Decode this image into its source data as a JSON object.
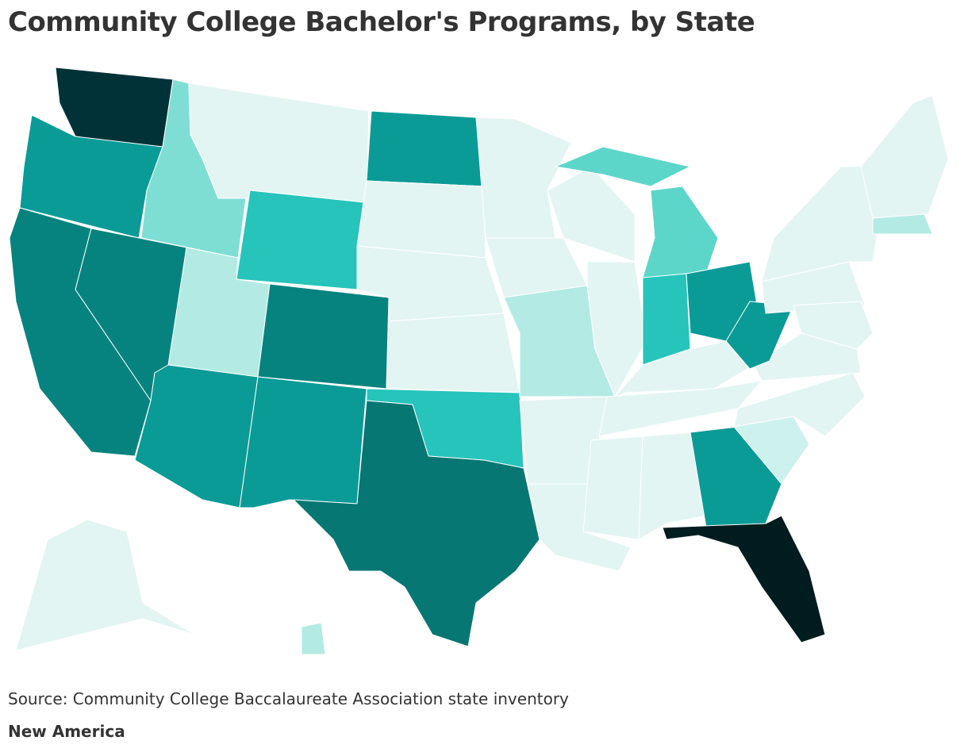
{
  "title": "Community College Bachelor's Programs, by State",
  "source": "Source: Community College Baccalaureate Association state inventory",
  "credit": "New America"
}
